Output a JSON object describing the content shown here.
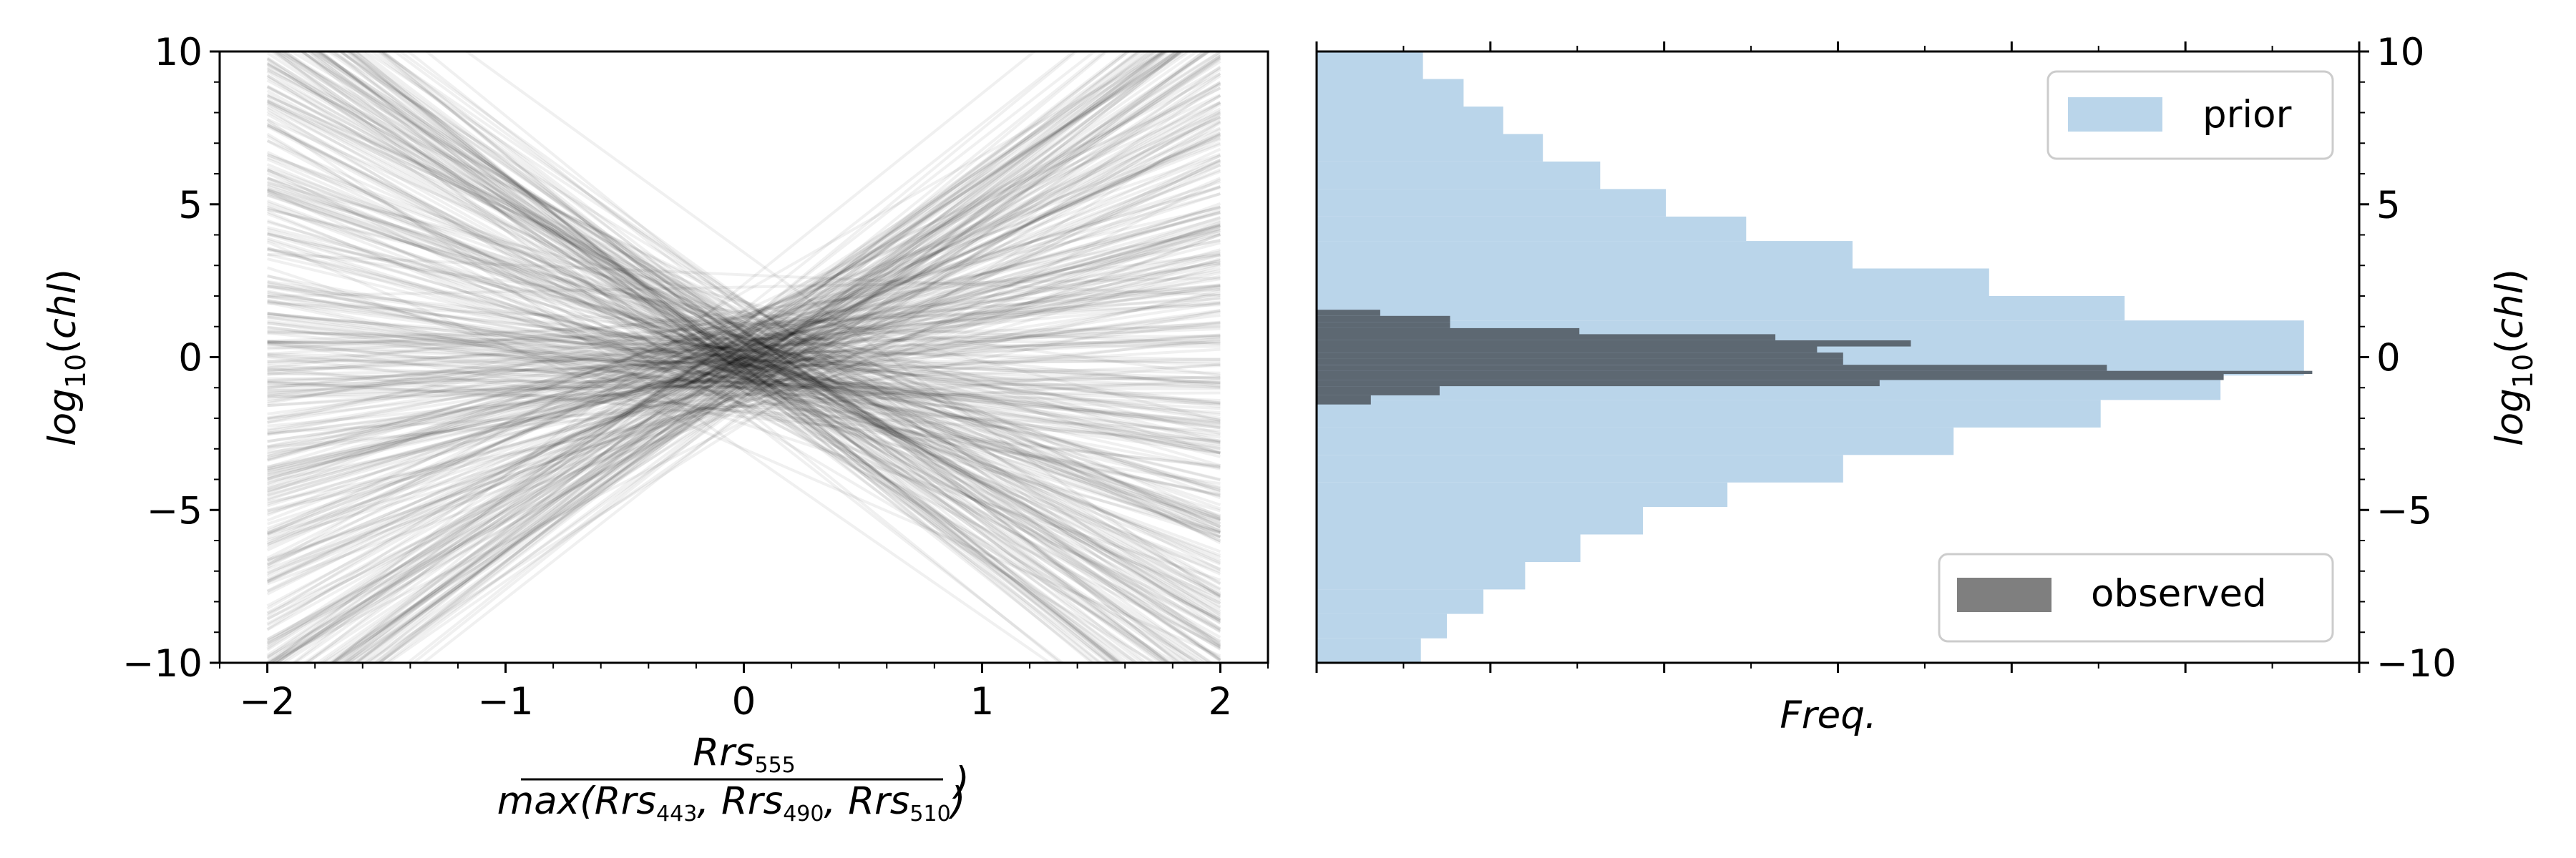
{
  "chart_data": [
    {
      "type": "line",
      "description_id": "left",
      "xlim": [
        -2.2,
        2.2
      ],
      "ylim": [
        -10,
        10
      ],
      "x_ticks": [
        -2,
        -1,
        0,
        1,
        2
      ],
      "x_tick_labels": [
        "−2",
        "−1",
        "0",
        "1",
        "2"
      ],
      "y_ticks": [
        -10,
        -5,
        0,
        5,
        10
      ],
      "y_tick_labels": [
        "−10",
        "−5",
        "0",
        "5",
        "10"
      ],
      "ylabel": "log10(chl)",
      "ylabel_parts": {
        "base": "log",
        "sub": "10",
        "arg": "(chl)"
      },
      "xlabel_parts": {
        "num_base": "Rrs",
        "num_sub": "555",
        "den_prefix": "max(",
        "den_items": [
          {
            "base": "Rrs",
            "sub": "443"
          },
          {
            "base": "Rrs",
            "sub": "490"
          },
          {
            "base": "Rrs",
            "sub": "510"
          }
        ],
        "den_suffix": ")",
        "trailing": ")"
      },
      "line_x_range": [
        -2,
        2
      ],
      "line_count": 420,
      "line_color": "#000000",
      "line_opacity": 0.06,
      "grid": false
    },
    {
      "type": "bar",
      "orientation": "horizontal",
      "ylim": [
        -10,
        10
      ],
      "y_ticks": [
        -10,
        -5,
        0,
        5,
        10
      ],
      "y_tick_labels": [
        "−10",
        "−5",
        "0",
        "5",
        "10"
      ],
      "ylabel": "log10(chl)",
      "xlabel": "Freq.",
      "xlim": [
        0,
        1.0
      ],
      "grid": false,
      "series": [
        {
          "name": "prior",
          "color": "#bad5ea",
          "bins": [
            {
              "y0": -10.0,
              "y1": -9.2,
              "value": 0.1
            },
            {
              "y0": -9.2,
              "y1": -8.4,
              "value": 0.125
            },
            {
              "y0": -8.4,
              "y1": -7.6,
              "value": 0.16
            },
            {
              "y0": -7.6,
              "y1": -6.7,
              "value": 0.2
            },
            {
              "y0": -6.7,
              "y1": -5.8,
              "value": 0.253
            },
            {
              "y0": -5.8,
              "y1": -4.9,
              "value": 0.313
            },
            {
              "y0": -4.9,
              "y1": -4.1,
              "value": 0.394
            },
            {
              "y0": -4.1,
              "y1": -3.2,
              "value": 0.505
            },
            {
              "y0": -3.2,
              "y1": -2.3,
              "value": 0.611
            },
            {
              "y0": -2.3,
              "y1": -1.4,
              "value": 0.752
            },
            {
              "y0": -1.4,
              "y1": -0.6,
              "value": 0.867
            },
            {
              "y0": -0.6,
              "y1": 1.2,
              "value": 0.947
            },
            {
              "y0": 1.2,
              "y1": 2.0,
              "value": 0.775
            },
            {
              "y0": 2.0,
              "y1": 2.9,
              "value": 0.645
            },
            {
              "y0": 2.9,
              "y1": 3.8,
              "value": 0.514
            },
            {
              "y0": 3.8,
              "y1": 4.6,
              "value": 0.412
            },
            {
              "y0": 4.6,
              "y1": 5.5,
              "value": 0.335
            },
            {
              "y0": 5.5,
              "y1": 6.4,
              "value": 0.272
            },
            {
              "y0": 6.4,
              "y1": 7.3,
              "value": 0.217
            },
            {
              "y0": 7.3,
              "y1": 8.2,
              "value": 0.179
            },
            {
              "y0": 8.2,
              "y1": 9.1,
              "value": 0.141
            },
            {
              "y0": 9.1,
              "y1": 10.0,
              "value": 0.102
            }
          ]
        },
        {
          "name": "observed",
          "color": "#5d6872",
          "bins": [
            {
              "y0": -1.55,
              "y1": -1.25,
              "value": 0.052
            },
            {
              "y0": -1.25,
              "y1": -0.95,
              "value": 0.118
            },
            {
              "y0": -0.95,
              "y1": -0.75,
              "value": 0.54
            },
            {
              "y0": -0.75,
              "y1": -0.55,
              "value": 0.87
            },
            {
              "y0": -0.55,
              "y1": -0.45,
              "value": 0.955
            },
            {
              "y0": -0.45,
              "y1": -0.25,
              "value": 0.758
            },
            {
              "y0": -0.25,
              "y1": -0.05,
              "value": 0.505
            },
            {
              "y0": -0.05,
              "y1": 0.15,
              "value": 0.505
            },
            {
              "y0": 0.15,
              "y1": 0.35,
              "value": 0.48
            },
            {
              "y0": 0.35,
              "y1": 0.55,
              "value": 0.57
            },
            {
              "y0": 0.55,
              "y1": 0.75,
              "value": 0.44
            },
            {
              "y0": 0.75,
              "y1": 0.95,
              "value": 0.252
            },
            {
              "y0": 0.95,
              "y1": 1.15,
              "value": 0.128
            },
            {
              "y0": 1.15,
              "y1": 1.35,
              "value": 0.128
            },
            {
              "y0": 1.35,
              "y1": 1.55,
              "value": 0.061
            }
          ]
        }
      ],
      "legend": [
        {
          "label": "prior",
          "placement": "upper-right"
        },
        {
          "label": "observed",
          "placement": "lower-right"
        }
      ]
    }
  ]
}
